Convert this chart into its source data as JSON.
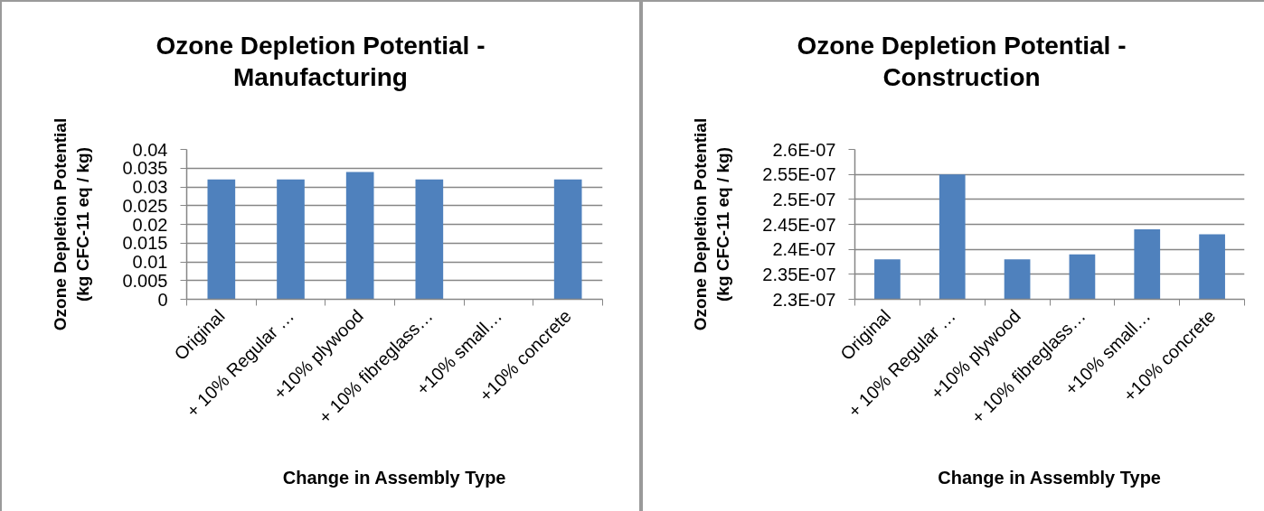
{
  "chart_data": [
    {
      "type": "bar",
      "title": "Ozone Depletion Potential - Manufacturing",
      "xlabel": "Change in Assembly Type",
      "ylabel": "Ozone Depletion Potential (kg CFC-11 eq / kg)",
      "categories": [
        "Original",
        "+ 10% Regular …",
        "+10% plywood",
        "+ 10% fibreglass…",
        "+10% small…",
        "+10% concrete"
      ],
      "values": [
        0.032,
        0.032,
        0.034,
        0.032,
        null,
        0.032
      ],
      "color": "#4f81bd",
      "ylim": [
        0,
        0.04
      ],
      "yticks": [
        0,
        0.005,
        0.01,
        0.015,
        0.02,
        0.025,
        0.03,
        0.035,
        0.04
      ],
      "grid": "y"
    },
    {
      "type": "bar",
      "title": "Ozone Depletion Potential - Construction",
      "xlabel": "Change in Assembly Type",
      "ylabel": "Ozone Depletion Potential (kg CFC-11 eq / kg)",
      "categories": [
        "Original",
        "+ 10% Regular …",
        "+10% plywood",
        "+ 10% fibreglass…",
        "+10% small…",
        "+10% concrete"
      ],
      "values": [
        2.38e-07,
        2.55e-07,
        2.38e-07,
        2.39e-07,
        2.44e-07,
        2.43e-07
      ],
      "color": "#4f81bd",
      "ylim": [
        2.3e-07,
        2.6e-07
      ],
      "yticks": [
        {
          "value": 2.3e-07,
          "label": "2.3E-07"
        },
        {
          "value": 2.35e-07,
          "label": "2.35E-07"
        },
        {
          "value": 2.4e-07,
          "label": "2.4E-07"
        },
        {
          "value": 2.45e-07,
          "label": "2.45E-07"
        },
        {
          "value": 2.5e-07,
          "label": "2.5E-07"
        },
        {
          "value": 2.55e-07,
          "label": "2.55E-07"
        },
        {
          "value": 2.6e-07,
          "label": "2.6E-07"
        }
      ],
      "grid": "y"
    }
  ]
}
